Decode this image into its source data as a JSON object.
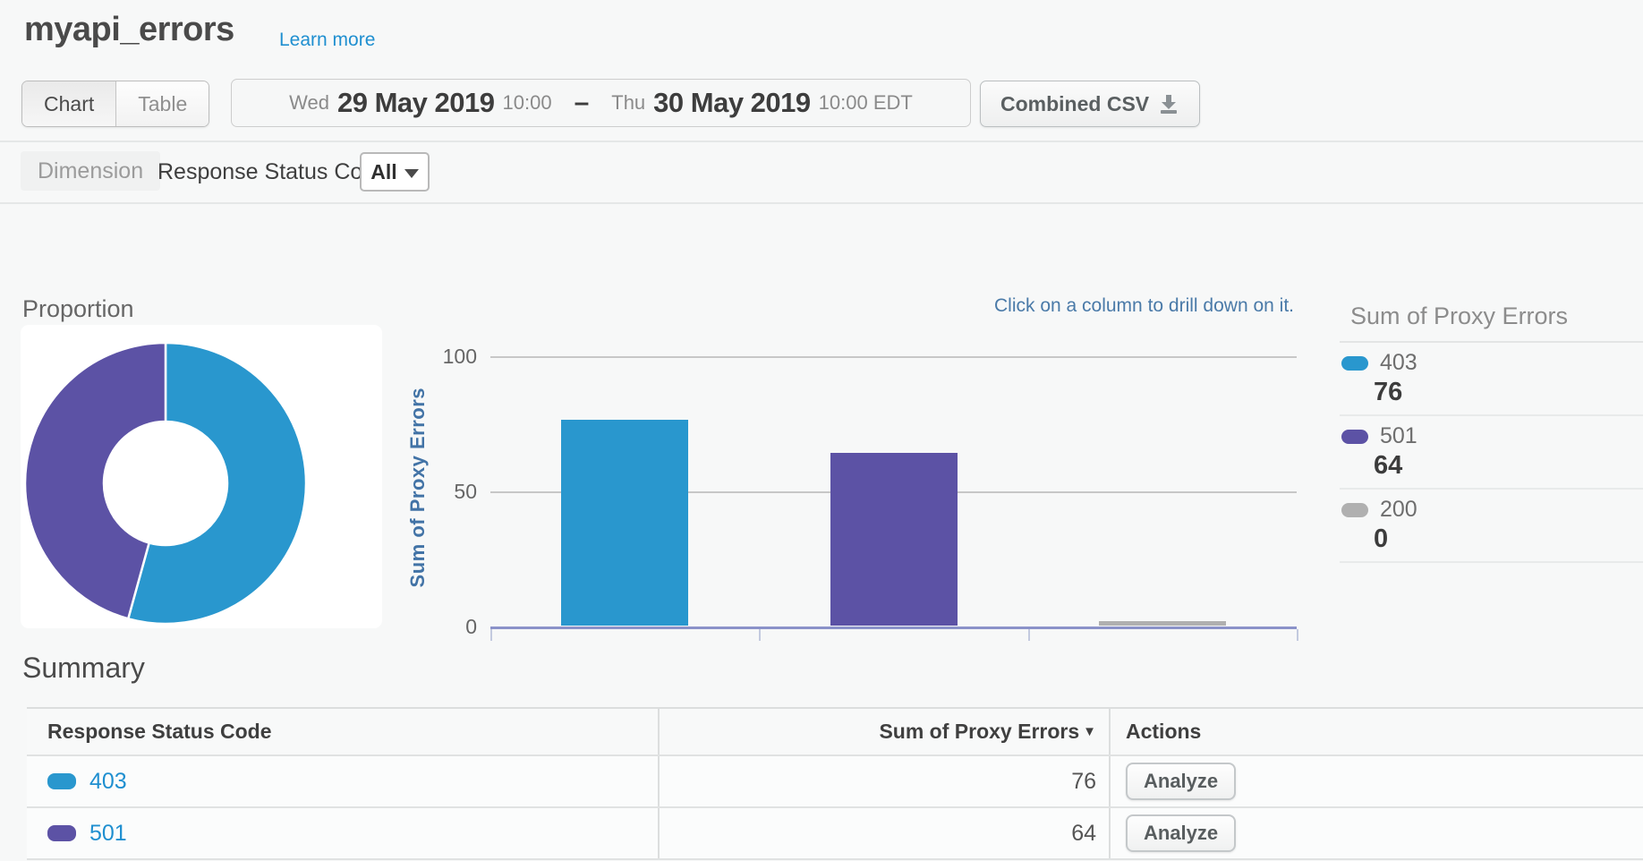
{
  "header": {
    "title": "myapi_errors",
    "learn_more": "Learn more"
  },
  "toolbar": {
    "view_toggle": {
      "chart_label": "Chart",
      "table_label": "Table",
      "selected": "Chart"
    },
    "date_range": {
      "start_day": "Wed",
      "start_date": "29 May 2019",
      "start_time": "10:00",
      "separator": "–",
      "end_day": "Thu",
      "end_date": "30 May 2019",
      "end_time": "10:00 EDT"
    },
    "export_label": "Combined CSV",
    "export_icon": "download-icon"
  },
  "dimension_bar": {
    "label": "Dimension",
    "name": "Response Status Code",
    "filter_value": "All"
  },
  "charts": {
    "proportion_title": "Proportion",
    "drilldown_hint": "Click on a column to drill down on it.",
    "legend": {
      "title": "Sum of Proxy Errors",
      "items": [
        {
          "label": "403",
          "value": "76",
          "color": "#2997CE"
        },
        {
          "label": "501",
          "value": "64",
          "color": "#5C52A5"
        },
        {
          "label": "200",
          "value": "0",
          "color": "#B0B0B0"
        }
      ]
    }
  },
  "chart_data": [
    {
      "type": "pie",
      "title": "Proportion",
      "labels": [
        "403",
        "501",
        "200"
      ],
      "values": [
        76,
        64,
        0
      ],
      "colors": [
        "#2997CE",
        "#5C52A5",
        "#B0B0B0"
      ],
      "donut": true,
      "start_angle_deg": 0,
      "direction": "clockwise"
    },
    {
      "type": "bar",
      "categories": [
        "403",
        "501",
        "200"
      ],
      "values": [
        76,
        64,
        0
      ],
      "colors": [
        "#2997CE",
        "#5C52A5",
        "#B0B0B0"
      ],
      "title": "",
      "xlabel": "",
      "ylabel": "Sum of Proxy Errors",
      "ylim": [
        0,
        100
      ],
      "yticks": [
        0,
        50,
        100
      ],
      "grid": true,
      "legend_position": "right",
      "annotation": "Click on a column to drill down on it."
    }
  ],
  "summary": {
    "title": "Summary",
    "columns": [
      "Response Status Code",
      "Sum of Proxy Errors",
      "Actions"
    ],
    "sort_indicator": "▼",
    "rows": [
      {
        "code": "403",
        "color": "#2997CE",
        "value": "76",
        "action": "Analyze"
      },
      {
        "code": "501",
        "color": "#5C52A5",
        "value": "64",
        "action": "Analyze"
      }
    ]
  },
  "colors": {
    "link_blue": "#1F8FD0",
    "series_403": "#2997CE",
    "series_501": "#5C52A5",
    "series_200": "#B0B0B0",
    "axis_line": "#8B92C9",
    "axis_label": "#4273A6",
    "hint_text": "#4A7AA8",
    "background": "#F7F8F8"
  }
}
